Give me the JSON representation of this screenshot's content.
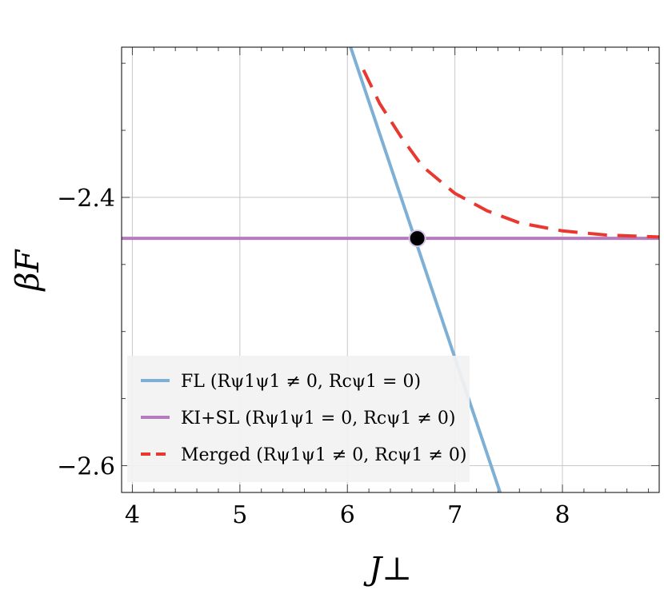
{
  "chart_data": {
    "type": "line",
    "xlabel": "J⊥",
    "ylabel": "βF",
    "xlim": [
      3.9,
      8.9
    ],
    "ylim": [
      -2.62,
      -2.288
    ],
    "grid": true,
    "x_ticks": [
      4,
      5,
      6,
      7,
      8
    ],
    "x_tick_labels": [
      "4",
      "5",
      "6",
      "7",
      "8"
    ],
    "y_ticks": [
      -2.4,
      -2.6
    ],
    "y_tick_labels": [
      "−2.4",
      "−2.6"
    ],
    "legend_position": "bottom-left",
    "series": [
      {
        "name": "FL (Rψ1ψ1 ≠ 0, Rcψ1 = 0)",
        "style": "solid",
        "color": "#7eb0d5",
        "points": [
          [
            6.03,
            -2.288
          ],
          [
            7.42,
            -2.62
          ]
        ]
      },
      {
        "name": "KI+SL (Rψ1ψ1 = 0, Rcψ1 ≠ 0)",
        "style": "solid",
        "color": "#b57cbd",
        "points": [
          [
            3.9,
            -2.4305
          ],
          [
            8.9,
            -2.4305
          ]
        ]
      },
      {
        "name": "Merged (Rψ1ψ1 ≠ 0, Rcψ1 ≠ 0)",
        "style": "dashed",
        "color": "#e8382f",
        "points": [
          [
            6.15,
            -2.305
          ],
          [
            6.3,
            -2.33
          ],
          [
            6.5,
            -2.355
          ],
          [
            6.7,
            -2.377
          ],
          [
            7.0,
            -2.397
          ],
          [
            7.3,
            -2.41
          ],
          [
            7.6,
            -2.419
          ],
          [
            8.0,
            -2.425
          ],
          [
            8.4,
            -2.428
          ],
          [
            8.9,
            -2.4295
          ]
        ]
      }
    ],
    "markers": [
      {
        "x": 6.65,
        "y": -2.4305,
        "color": "#000000"
      }
    ]
  }
}
